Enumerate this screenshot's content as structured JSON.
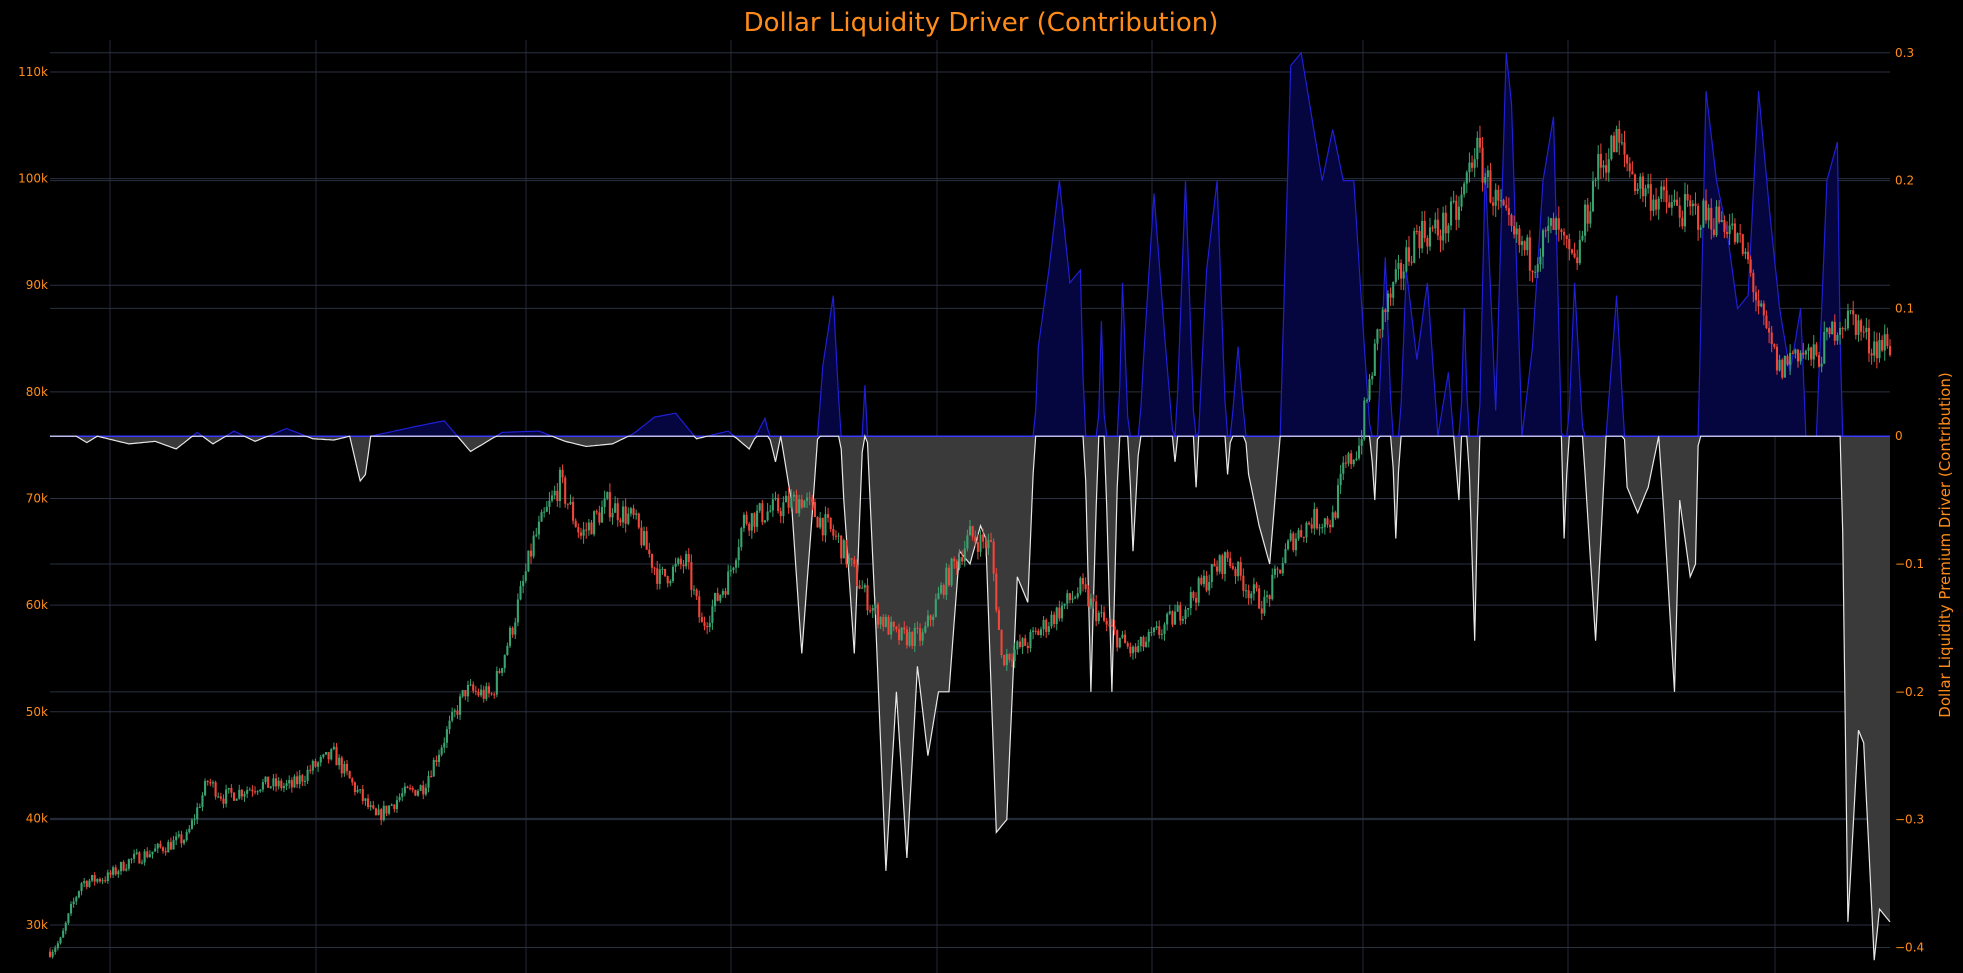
{
  "chart_data": {
    "type": "candlestick+area",
    "title": "Dollar Liquidity Driver (Contribution)",
    "y_left": {
      "label": "",
      "ticks": [
        {
          "v": 30000,
          "t": "30k"
        },
        {
          "v": 40000,
          "t": "40k"
        },
        {
          "v": 50000,
          "t": "50k"
        },
        {
          "v": 60000,
          "t": "60k"
        },
        {
          "v": 70000,
          "t": "70k"
        },
        {
          "v": 80000,
          "t": "80k"
        },
        {
          "v": 90000,
          "t": "90k"
        },
        {
          "v": 100000,
          "t": "100k"
        },
        {
          "v": 110000,
          "t": "110k"
        }
      ],
      "range": [
        25500,
        113000
      ]
    },
    "y_right": {
      "label": "Dollar Liquidity Premium Driver (Contribution)",
      "ticks": [
        {
          "v": 0.3,
          "t": "0.3"
        },
        {
          "v": 0.2,
          "t": "0.2"
        },
        {
          "v": 0.1,
          "t": "0.1"
        },
        {
          "v": 0,
          "t": "0"
        },
        {
          "v": -0.1,
          "t": "−0.1"
        },
        {
          "v": -0.2,
          "t": "−0.2"
        },
        {
          "v": -0.3,
          "t": "−0.3"
        },
        {
          "v": -0.4,
          "t": "−0.4"
        }
      ],
      "range": [
        -0.42,
        0.31
      ]
    },
    "grid": true,
    "colors": {
      "up": "#3aa370",
      "down": "#f0463a",
      "positive_line": "#1f1fd6",
      "positive_fill": "#050540",
      "negative_line": "#e8e8e8",
      "negative_fill": "#3a3a3a",
      "text": "#ff8c1a"
    },
    "price_anchors": [
      [
        0,
        27500
      ],
      [
        4,
        28500
      ],
      [
        8,
        31500
      ],
      [
        12,
        34000
      ],
      [
        22,
        34500
      ],
      [
        30,
        36000
      ],
      [
        42,
        37200
      ],
      [
        52,
        38200
      ],
      [
        60,
        43500
      ],
      [
        66,
        42000
      ],
      [
        80,
        43200
      ],
      [
        92,
        43000
      ],
      [
        100,
        44800
      ],
      [
        108,
        46000
      ],
      [
        115,
        43200
      ],
      [
        124,
        40000
      ],
      [
        134,
        42200
      ],
      [
        142,
        43000
      ],
      [
        150,
        47500
      ],
      [
        158,
        52000
      ],
      [
        168,
        51500
      ],
      [
        176,
        58000
      ],
      [
        184,
        66000
      ],
      [
        194,
        71500
      ],
      [
        202,
        66500
      ],
      [
        212,
        69500
      ],
      [
        222,
        68000
      ],
      [
        232,
        62500
      ],
      [
        242,
        64000
      ],
      [
        248,
        58000
      ],
      [
        258,
        62500
      ],
      [
        264,
        68000
      ],
      [
        276,
        69000
      ],
      [
        286,
        70000
      ],
      [
        300,
        66000
      ],
      [
        312,
        60000
      ],
      [
        322,
        57000
      ],
      [
        332,
        57000
      ],
      [
        340,
        62000
      ],
      [
        350,
        66500
      ],
      [
        358,
        65500
      ],
      [
        362,
        55000
      ],
      [
        372,
        56500
      ],
      [
        382,
        59000
      ],
      [
        392,
        61500
      ],
      [
        402,
        58000
      ],
      [
        412,
        55500
      ],
      [
        422,
        57500
      ],
      [
        432,
        60000
      ],
      [
        442,
        63000
      ],
      [
        448,
        64500
      ],
      [
        456,
        61500
      ],
      [
        462,
        60000
      ],
      [
        472,
        66000
      ],
      [
        480,
        68000
      ],
      [
        488,
        68000
      ],
      [
        492,
        72500
      ],
      [
        498,
        75000
      ],
      [
        506,
        86500
      ],
      [
        512,
        90000
      ],
      [
        520,
        95000
      ],
      [
        528,
        95000
      ],
      [
        536,
        97000
      ],
      [
        542,
        103000
      ],
      [
        548,
        99000
      ],
      [
        556,
        94500
      ],
      [
        564,
        92500
      ],
      [
        572,
        95500
      ],
      [
        580,
        91500
      ],
      [
        588,
        100500
      ],
      [
        596,
        103500
      ],
      [
        604,
        99500
      ],
      [
        612,
        98000
      ],
      [
        620,
        97000
      ],
      [
        630,
        96500
      ],
      [
        638,
        96000
      ],
      [
        646,
        92000
      ],
      [
        652,
        86000
      ],
      [
        658,
        82000
      ],
      [
        664,
        84000
      ],
      [
        672,
        83000
      ],
      [
        680,
        86500
      ],
      [
        686,
        87000
      ],
      [
        692,
        84500
      ],
      [
        700,
        84500
      ]
    ],
    "premium_anchors": [
      [
        0,
        0
      ],
      [
        10,
        0
      ],
      [
        14,
        -0.005
      ],
      [
        18,
        0
      ],
      [
        30,
        -0.006
      ],
      [
        40,
        -0.004
      ],
      [
        48,
        -0.01
      ],
      [
        56,
        0.003
      ],
      [
        62,
        -0.006
      ],
      [
        70,
        0.004
      ],
      [
        78,
        -0.004
      ],
      [
        90,
        0.006
      ],
      [
        100,
        -0.002
      ],
      [
        108,
        -0.003
      ],
      [
        114,
        0
      ],
      [
        118,
        -0.035
      ],
      [
        120,
        -0.03
      ],
      [
        122,
        0
      ],
      [
        140,
        0.008
      ],
      [
        150,
        0.012
      ],
      [
        160,
        -0.012
      ],
      [
        172,
        0.003
      ],
      [
        186,
        0.004
      ],
      [
        196,
        -0.004
      ],
      [
        204,
        -0.008
      ],
      [
        214,
        -0.006
      ],
      [
        222,
        0.002
      ],
      [
        230,
        0.015
      ],
      [
        238,
        0.018
      ],
      [
        246,
        -0.002
      ],
      [
        258,
        0.004
      ],
      [
        266,
        -0.01
      ],
      [
        272,
        0.014
      ],
      [
        276,
        -0.02
      ],
      [
        278,
        0
      ],
      [
        282,
        -0.05
      ],
      [
        286,
        -0.17
      ],
      [
        290,
        -0.06
      ],
      [
        294,
        0.055
      ],
      [
        298,
        0.11
      ],
      [
        302,
        -0.05
      ],
      [
        306,
        -0.17
      ],
      [
        310,
        0.04
      ],
      [
        314,
        -0.14
      ],
      [
        318,
        -0.34
      ],
      [
        322,
        -0.2
      ],
      [
        326,
        -0.33
      ],
      [
        330,
        -0.18
      ],
      [
        334,
        -0.25
      ],
      [
        338,
        -0.2
      ],
      [
        342,
        -0.2
      ],
      [
        346,
        -0.09
      ],
      [
        350,
        -0.1
      ],
      [
        354,
        -0.07
      ],
      [
        356,
        -0.08
      ],
      [
        360,
        -0.31
      ],
      [
        364,
        -0.3
      ],
      [
        368,
        -0.11
      ],
      [
        372,
        -0.13
      ],
      [
        376,
        0.07
      ],
      [
        380,
        0.13
      ],
      [
        384,
        0.2
      ],
      [
        388,
        0.12
      ],
      [
        392,
        0.13
      ],
      [
        396,
        -0.2
      ],
      [
        400,
        0.09
      ],
      [
        404,
        -0.2
      ],
      [
        408,
        0.12
      ],
      [
        412,
        -0.09
      ],
      [
        416,
        0.06
      ],
      [
        420,
        0.19
      ],
      [
        424,
        0.08
      ],
      [
        428,
        -0.02
      ],
      [
        432,
        0.2
      ],
      [
        436,
        -0.04
      ],
      [
        440,
        0.13
      ],
      [
        444,
        0.2
      ],
      [
        448,
        -0.03
      ],
      [
        452,
        0.07
      ],
      [
        456,
        -0.03
      ],
      [
        460,
        -0.07
      ],
      [
        464,
        -0.1
      ],
      [
        468,
        0
      ],
      [
        472,
        0.29
      ],
      [
        476,
        0.3
      ],
      [
        480,
        0.25
      ],
      [
        484,
        0.2
      ],
      [
        488,
        0.24
      ],
      [
        492,
        0.2
      ],
      [
        496,
        0.2
      ],
      [
        500,
        0.07
      ],
      [
        504,
        -0.05
      ],
      [
        508,
        0.14
      ],
      [
        512,
        -0.08
      ],
      [
        516,
        0.13
      ],
      [
        520,
        0.06
      ],
      [
        524,
        0.12
      ],
      [
        528,
        0.0
      ],
      [
        532,
        0.05
      ],
      [
        536,
        -0.05
      ],
      [
        538,
        0.1
      ],
      [
        542,
        -0.16
      ],
      [
        546,
        0.21
      ],
      [
        550,
        0.02
      ],
      [
        554,
        0.3
      ],
      [
        556,
        0.26
      ],
      [
        560,
        0.0
      ],
      [
        564,
        0.07
      ],
      [
        568,
        0.2
      ],
      [
        572,
        0.25
      ],
      [
        576,
        -0.08
      ],
      [
        580,
        0.12
      ],
      [
        584,
        -0.03
      ],
      [
        588,
        -0.16
      ],
      [
        592,
        0
      ],
      [
        596,
        0.11
      ],
      [
        600,
        -0.04
      ],
      [
        604,
        -0.06
      ],
      [
        608,
        -0.04
      ],
      [
        612,
        0
      ],
      [
        614,
        -0.06
      ],
      [
        618,
        -0.2
      ],
      [
        620,
        -0.05
      ],
      [
        624,
        -0.11
      ],
      [
        626,
        -0.1
      ],
      [
        630,
        0.27
      ],
      [
        634,
        0.2
      ],
      [
        638,
        0.16
      ],
      [
        642,
        0.1
      ],
      [
        646,
        0.11
      ],
      [
        650,
        0.27
      ],
      [
        654,
        0.18
      ],
      [
        658,
        0.1
      ],
      [
        662,
        0.05
      ],
      [
        666,
        0.1
      ],
      [
        668,
        0.0
      ],
      [
        672,
        0
      ],
      [
        676,
        0.2
      ],
      [
        680,
        0.23
      ],
      [
        684,
        -0.38
      ],
      [
        688,
        -0.23
      ],
      [
        690,
        -0.24
      ],
      [
        694,
        -0.41
      ],
      [
        696,
        -0.37
      ],
      [
        700,
        -0.38
      ]
    ],
    "note_candles": "Daily OHLC candles; green = up, red = down"
  }
}
